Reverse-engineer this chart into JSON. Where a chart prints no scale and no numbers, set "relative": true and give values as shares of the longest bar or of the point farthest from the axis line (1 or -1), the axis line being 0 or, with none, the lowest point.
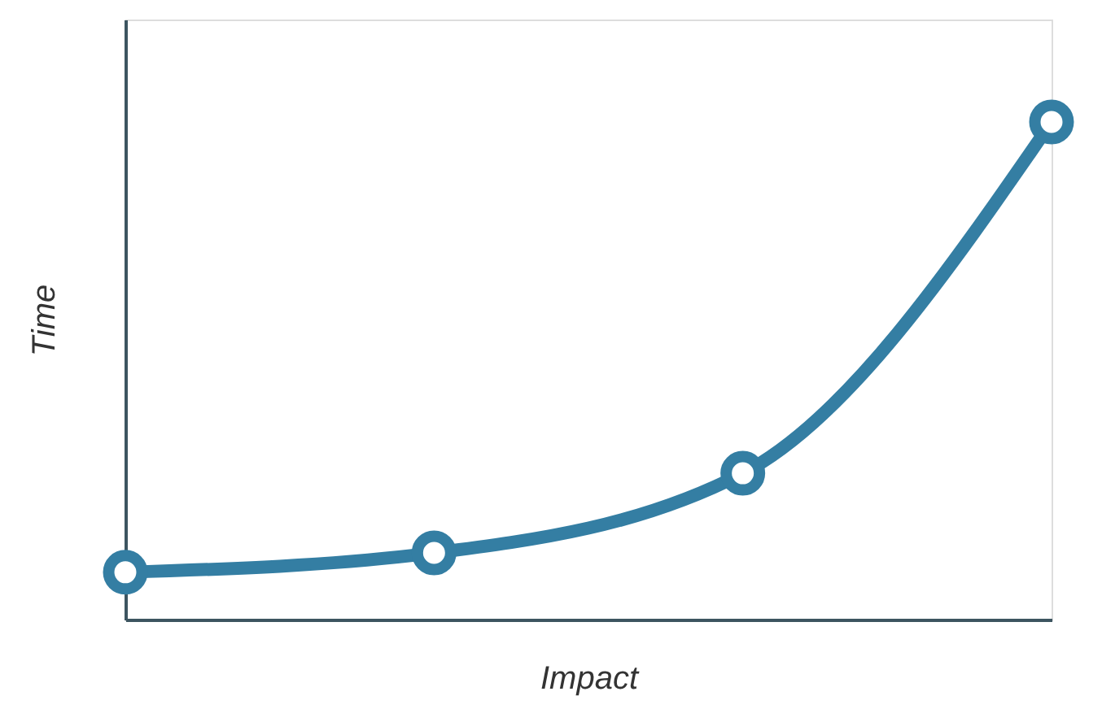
{
  "chart_data": {
    "type": "line",
    "xlabel": "Impact",
    "ylabel": "Time",
    "relative": true,
    "tick_labels": false,
    "grid": false,
    "marker": "circle",
    "line_style": "solid",
    "categories": [
      null,
      null,
      null,
      null
    ],
    "series": [
      {
        "color": "#347ea3",
        "values": [
          0.095,
          0.134,
          0.294,
          1
        ]
      }
    ]
  }
}
